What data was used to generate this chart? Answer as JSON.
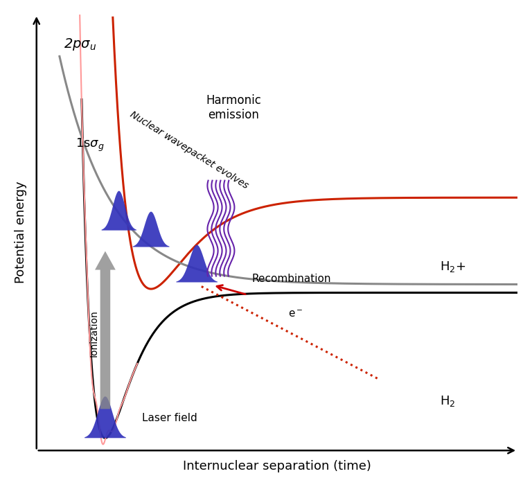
{
  "xlabel": "Internuclear separation (time)",
  "ylabel": "Potential energy",
  "background_color": "#ffffff",
  "curve_H2_color": "#000000",
  "curve_1sg_color": "#cc2200",
  "curve_2psu_color": "#888888",
  "laser_color": "#ff9999",
  "wavepacket_color": "#3333bb",
  "harmonic_color": "#6622aa",
  "electron_dotted_color": "#cc2200",
  "arrow_ionization_color": "#888888",
  "label_H2": "H$_2$",
  "label_H2plus": "H$_2$+",
  "label_1sg": "1s$\\sigma$$_g$",
  "label_2psu": "2p$\\sigma$$_u$",
  "label_harmonic": "Harmonic\nemission",
  "label_nuclear": "Nuclear wavepacket evolves",
  "label_ionization": "Ionization",
  "label_laser": "Laser field",
  "label_recombination": "Recombination",
  "label_electron": "e$^-$",
  "figsize": [
    7.68,
    7.03
  ],
  "dpi": 100,
  "xlim": [
    0.0,
    10.5
  ],
  "ylim": [
    -3.5,
    7.0
  ]
}
